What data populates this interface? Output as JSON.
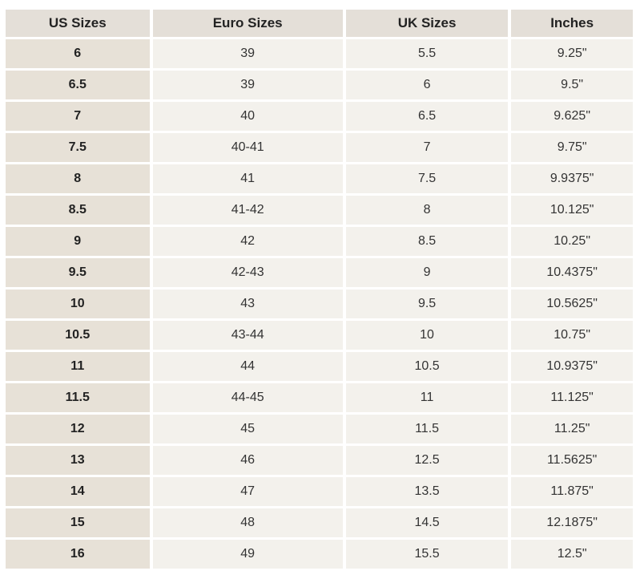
{
  "table": {
    "headers": [
      "US Sizes",
      "Euro Sizes",
      "UK Sizes",
      "Inches"
    ],
    "rows": [
      [
        "6",
        "39",
        "5.5",
        "9.25\""
      ],
      [
        "6.5",
        "39",
        "6",
        "9.5\""
      ],
      [
        "7",
        "40",
        "6.5",
        "9.625\""
      ],
      [
        "7.5",
        "40-41",
        "7",
        "9.75\""
      ],
      [
        "8",
        "41",
        "7.5",
        "9.9375\""
      ],
      [
        "8.5",
        "41-42",
        "8",
        "10.125\""
      ],
      [
        "9",
        "42",
        "8.5",
        "10.25\""
      ],
      [
        "9.5",
        "42-43",
        "9",
        "10.4375\""
      ],
      [
        "10",
        "43",
        "9.5",
        "10.5625\""
      ],
      [
        "10.5",
        "43-44",
        "10",
        "10.75\""
      ],
      [
        "11",
        "44",
        "10.5",
        "10.9375\""
      ],
      [
        "11.5",
        "44-45",
        "11",
        "11.125\""
      ],
      [
        "12",
        "45",
        "11.5",
        "11.25\""
      ],
      [
        "13",
        "46",
        "12.5",
        "11.5625\""
      ],
      [
        "14",
        "47",
        "13.5",
        "11.875\""
      ],
      [
        "15",
        "48",
        "14.5",
        "12.1875\""
      ],
      [
        "16",
        "49",
        "15.5",
        "12.5\""
      ]
    ]
  },
  "colors": {
    "header_bg": "#e4dfd8",
    "us_column_bg": "#e7e1d7",
    "cell_bg": "#f3f1ec"
  }
}
